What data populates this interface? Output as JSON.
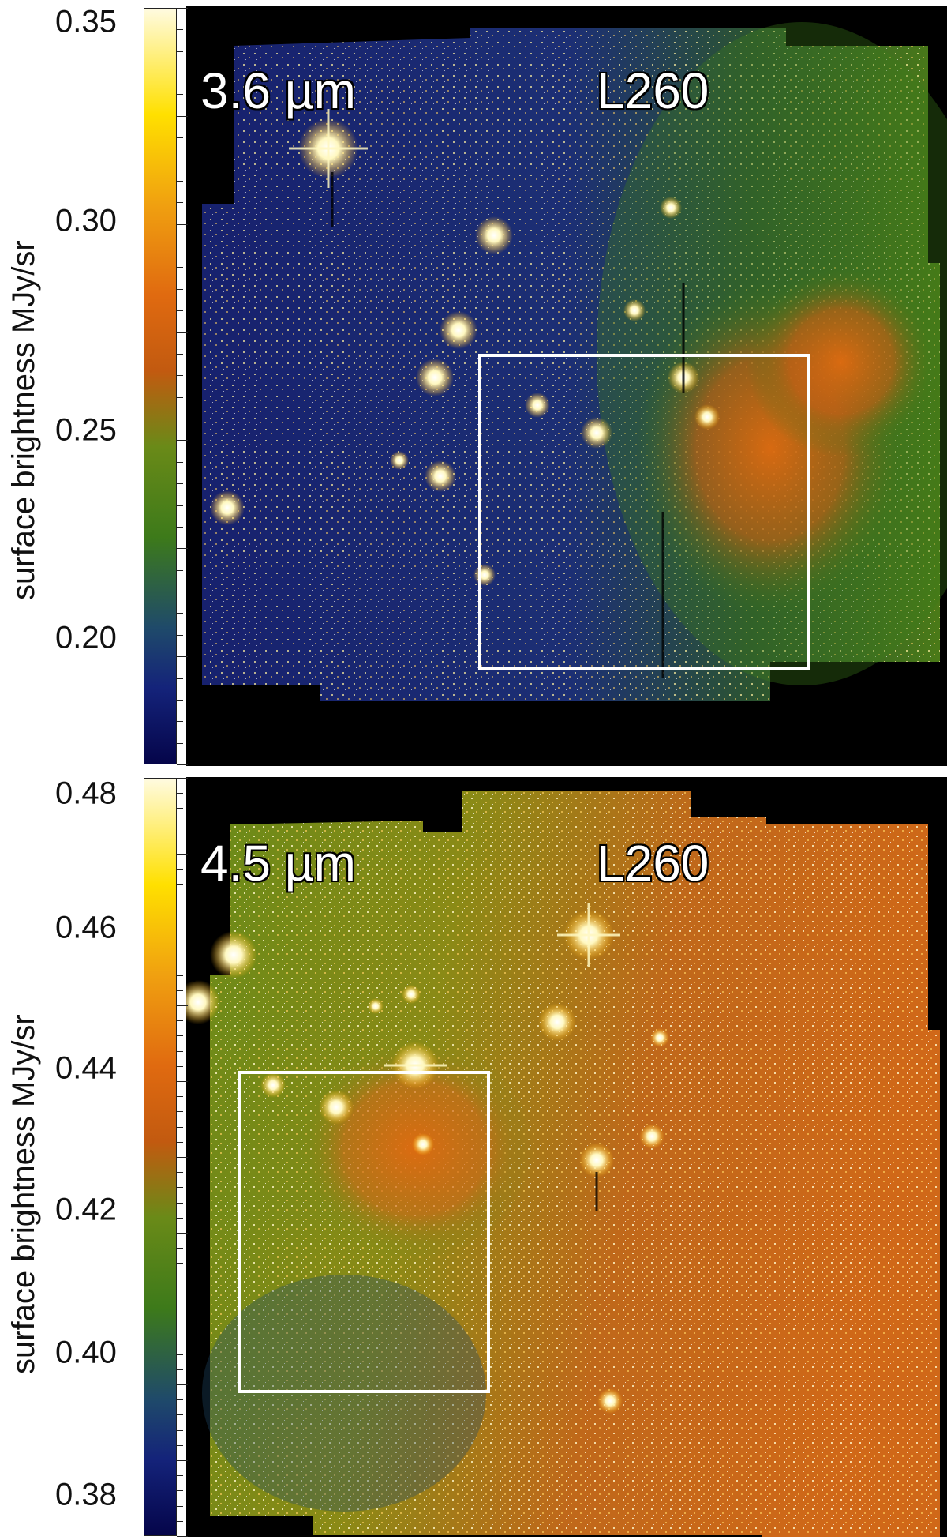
{
  "panels": [
    {
      "band": "3.6 µm",
      "object": "L260",
      "colorbar_label": "surface brightness MJy/sr",
      "ticks": [
        "0.35",
        "0.30",
        "0.25",
        "0.20"
      ],
      "colors": {
        "low": "#0a0a6e",
        "mid": "#3d7a1a",
        "high": "#e05a10",
        "top": "#fff6c8"
      }
    },
    {
      "band": "4.5 µm",
      "object": "L260",
      "colorbar_label": "surface brightness MJy/sr",
      "ticks": [
        "0.48",
        "0.46",
        "0.44",
        "0.42",
        "0.40",
        "0.38"
      ],
      "colors": {
        "low": "#0a0a6e",
        "mid": "#3d7a1a",
        "high": "#e05a10",
        "top": "#fff6c8"
      }
    }
  ]
}
